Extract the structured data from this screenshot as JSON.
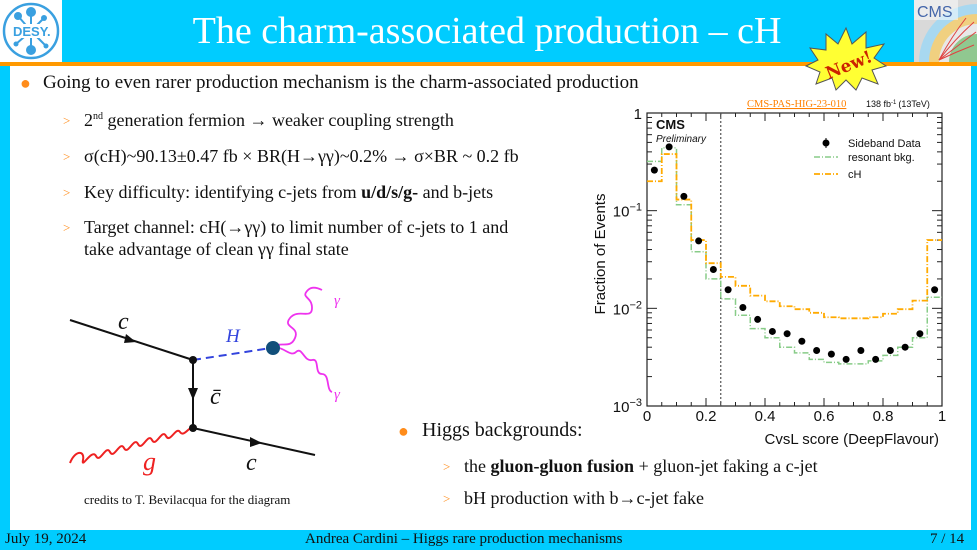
{
  "header": {
    "title": "The charm-associated production – cH",
    "logo_left": "DESY.",
    "logo_right": "CMS",
    "badge": "New!"
  },
  "main": {
    "bullet1": "Going to even rarer production mechanism is the charm-associated production",
    "sub1": [
      {
        "parts": [
          "2",
          "nd",
          " generation fermion → weaker coupling strength"
        ]
      },
      {
        "text": "σ(cH)~90.13±0.47 fb × BR(H→γγ)~0.2% → σ×BR ~ 0.2 fb"
      },
      {
        "pre": "Key difficulty: identifying c-jets from ",
        "bold": "u/d/s/g-",
        "post": " and b-jets"
      },
      {
        "line1": "Target channel: cH(→γγ) to limit number of c-jets to 1 and",
        "line2": "take advantage of clean γγ final state"
      }
    ],
    "bullet2": "Higgs backgrounds:",
    "sub2": [
      {
        "pre": "the ",
        "bold": "gluon-gluon fusion",
        "post": " + gluon-jet faking a c-jet"
      },
      {
        "text": "bH production with b→c-jet fake"
      }
    ]
  },
  "diagram": {
    "labels": {
      "c_in": "c",
      "H": "H",
      "cbar": "c̄",
      "g": "g",
      "c_out": "c",
      "gamma1": "γ",
      "gamma2": "γ"
    },
    "credit": "credits to T. Bevilacqua for the diagram"
  },
  "chart_data": {
    "type": "line",
    "title": "",
    "reference": "CMS-PAS-HIG-23-010",
    "lumi": "138 fb",
    "lumi_sup": "-1",
    "energy": "(13TeV)",
    "experiment": "CMS",
    "status": "Preliminary",
    "xlabel": "CvsL score (DeepFlavour)",
    "ylabel": "Fraction of Events",
    "xlim": [
      0,
      1
    ],
    "ylim": [
      0.001,
      1
    ],
    "yscale": "log",
    "xticks": [
      "0",
      "0.2",
      "0.4",
      "0.6",
      "0.8",
      "1"
    ],
    "yticks": [
      {
        "value": 1,
        "label": "1"
      },
      {
        "value": 0.1,
        "base": "10",
        "exp": "−1"
      },
      {
        "value": 0.01,
        "base": "10",
        "exp": "−2"
      },
      {
        "value": 0.001,
        "base": "10",
        "exp": "−3"
      }
    ],
    "cut_line": 0.25,
    "legend_position": "top-right",
    "bin_edges": [
      0,
      0.05,
      0.1,
      0.15,
      0.2,
      0.25,
      0.3,
      0.35,
      0.4,
      0.45,
      0.5,
      0.55,
      0.6,
      0.65,
      0.7,
      0.75,
      0.8,
      0.85,
      0.9,
      0.95,
      1.0
    ],
    "series": [
      {
        "name": "Sideband Data",
        "kind": "points",
        "color": "#000000",
        "x": [
          0.025,
          0.075,
          0.125,
          0.175,
          0.225,
          0.275,
          0.325,
          0.375,
          0.425,
          0.475,
          0.525,
          0.575,
          0.625,
          0.675,
          0.725,
          0.775,
          0.825,
          0.875,
          0.925,
          0.975
        ],
        "values": [
          0.26,
          0.45,
          0.14,
          0.049,
          0.025,
          0.0155,
          0.0102,
          0.0077,
          0.0058,
          0.0055,
          0.0046,
          0.0037,
          0.0034,
          0.003,
          0.0037,
          0.003,
          0.0037,
          0.004,
          0.0055,
          0.0155
        ]
      },
      {
        "name": "resonant bkg.",
        "kind": "step",
        "color": "#88cc88",
        "values": [
          0.32,
          0.44,
          0.115,
          0.038,
          0.02,
          0.0125,
          0.0085,
          0.0062,
          0.005,
          0.004,
          0.0035,
          0.003,
          0.0028,
          0.0027,
          0.0027,
          0.0029,
          0.0033,
          0.004,
          0.005,
          0.013
        ]
      },
      {
        "name": "cH",
        "kind": "step",
        "color": "#ffaa00",
        "values": [
          0.2,
          0.38,
          0.13,
          0.05,
          0.029,
          0.021,
          0.017,
          0.0135,
          0.0118,
          0.0105,
          0.0098,
          0.009,
          0.0081,
          0.0079,
          0.0079,
          0.0081,
          0.0088,
          0.0098,
          0.012,
          0.05
        ]
      }
    ]
  },
  "footer": {
    "date": "July 19, 2024",
    "center": "Andrea Cardini – Higgs rare production mechanisms",
    "page": "7 / 14"
  },
  "colors": {
    "header_bg": "#00ccff",
    "accent_orange": "#ff9900",
    "link_orange": "#ff8000"
  }
}
